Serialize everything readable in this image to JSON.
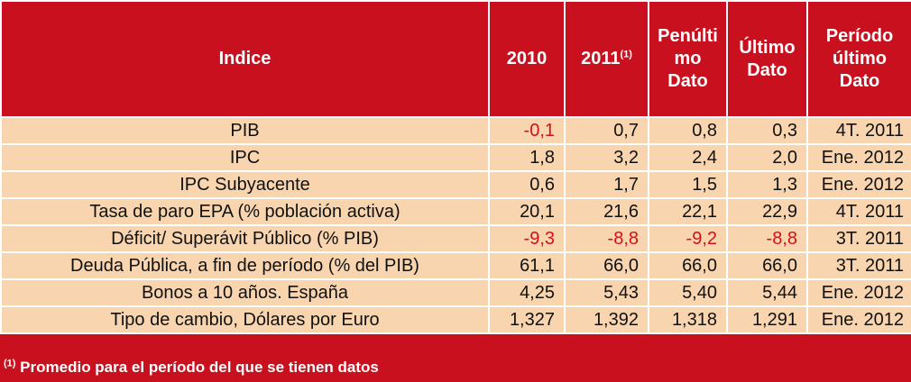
{
  "header": {
    "indice": "Indice",
    "y2010": "2010",
    "y2011": "2011",
    "y2011_note": "(1)",
    "penultimo": [
      "Penúlti",
      "mo",
      "Dato"
    ],
    "ultimo": [
      "Último",
      "Dato"
    ],
    "periodo": [
      "Período",
      "último",
      "Dato"
    ]
  },
  "rows": [
    {
      "label": "PIB",
      "v2010": "-0,1",
      "v2011": "0,7",
      "penultimo": "0,8",
      "ultimo": "0,3",
      "periodo": "4T. 2011"
    },
    {
      "label": "IPC",
      "v2010": "1,8",
      "v2011": "3,2",
      "penultimo": "2,4",
      "ultimo": "2,0",
      "periodo": "Ene. 2012"
    },
    {
      "label": "IPC Subyacente",
      "v2010": "0,6",
      "v2011": "1,7",
      "penultimo": "1,5",
      "ultimo": "1,3",
      "periodo": "Ene. 2012"
    },
    {
      "label": "Tasa de paro EPA (% población activa)",
      "v2010": "20,1",
      "v2011": "21,6",
      "penultimo": "22,1",
      "ultimo": "22,9",
      "periodo": "4T. 2011"
    },
    {
      "label": "Déficit/ Superávit Público (% PIB)",
      "v2010": "-9,3",
      "v2011": "-8,8",
      "penultimo": "-9,2",
      "ultimo": "-8,8",
      "periodo": "3T. 2011"
    },
    {
      "label": "Deuda Pública, a fin de período (% del PIB)",
      "v2010": "61,1",
      "v2011": "66,0",
      "penultimo": "66,0",
      "ultimo": "66,0",
      "periodo": "3T. 2011"
    },
    {
      "label": "Bonos a 10 años. España",
      "v2010": "4,25",
      "v2011": "5,43",
      "penultimo": "5,40",
      "ultimo": "5,44",
      "periodo": "Ene. 2012"
    },
    {
      "label": "Tipo de cambio, Dólares por Euro",
      "v2010": "1,327",
      "v2011": "1,392",
      "penultimo": "1,318",
      "ultimo": "1,291",
      "periodo": "Ene. 2012"
    }
  ],
  "footnote": {
    "mark": "(1)",
    "text": " Promedio para el período del que se tienen datos"
  },
  "colors": {
    "header_bg": "#c8101e",
    "row_bg": "#f8d5ae",
    "negative_text": "#d4101a"
  }
}
